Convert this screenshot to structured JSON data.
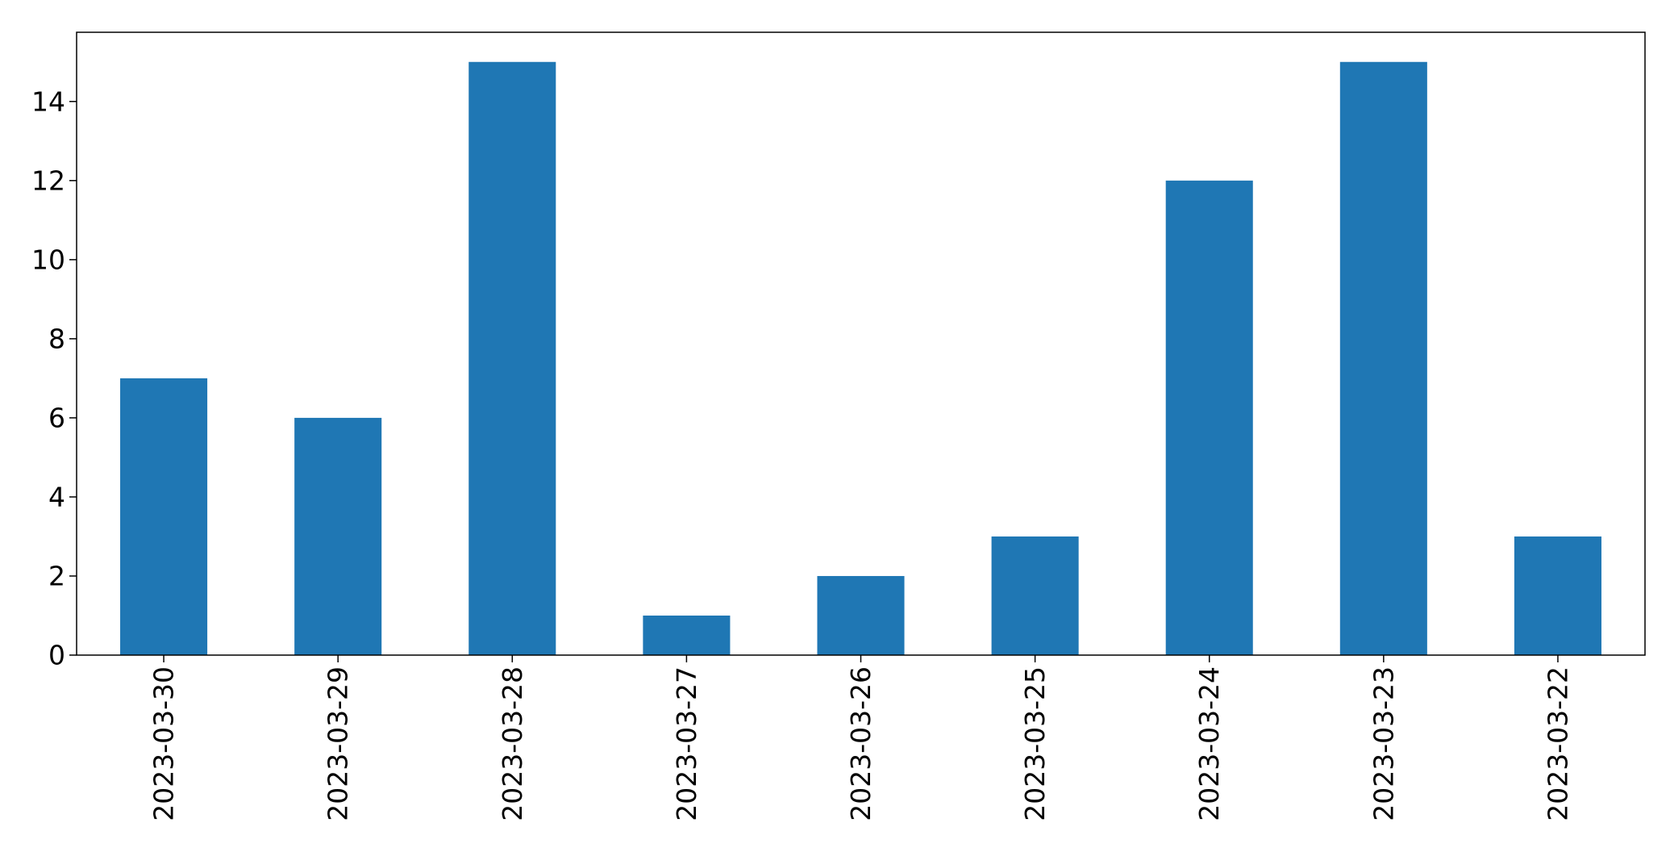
{
  "colors": {
    "bar": "#1f77b4",
    "axis": "#000000",
    "background": "#ffffff"
  },
  "chart_data": {
    "type": "bar",
    "title": "",
    "xlabel": "",
    "ylabel": "",
    "categories": [
      "2023-03-30",
      "2023-03-29",
      "2023-03-28",
      "2023-03-27",
      "2023-03-26",
      "2023-03-25",
      "2023-03-24",
      "2023-03-23",
      "2023-03-22"
    ],
    "series": [
      {
        "values": [
          7,
          6,
          15,
          1,
          2,
          3,
          12,
          15,
          3
        ]
      }
    ],
    "ylim": [
      0,
      15.75
    ],
    "yticks": [
      0,
      2,
      4,
      6,
      8,
      10,
      12,
      14
    ],
    "ytick_labels": [
      "0",
      "2",
      "4",
      "6",
      "8",
      "10",
      "12",
      "14"
    ],
    "grid": false,
    "legend": "none",
    "xtick_rotation": "vertical"
  }
}
